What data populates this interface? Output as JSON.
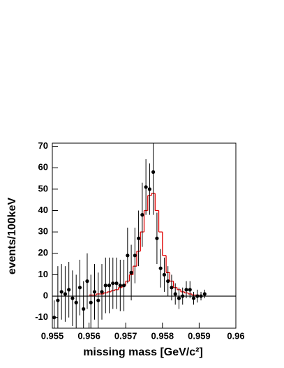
{
  "chart_data": {
    "type": "scatter",
    "xlabel": "missing mass [GeV/c²]",
    "ylabel": "events/100keV",
    "color": "#000000",
    "x": [
      0.95505,
      0.95515,
      0.95525,
      0.95535,
      0.95545,
      0.95555,
      0.95565,
      0.95575,
      0.95585,
      0.95595,
      0.95605,
      0.95615,
      0.95625,
      0.95635,
      0.95645,
      0.95655,
      0.95665,
      0.95675,
      0.95685,
      0.95695,
      0.95705,
      0.95715,
      0.95725,
      0.95735,
      0.95745,
      0.95755,
      0.95765,
      0.95775,
      0.95785,
      0.95795,
      0.95805,
      0.95815,
      0.95825,
      0.95835,
      0.95845,
      0.95855,
      0.95865,
      0.95875,
      0.95885,
      0.95895,
      0.95905,
      0.95915
    ],
    "values": [
      -10,
      -2,
      2,
      1,
      3,
      -1,
      -3,
      4,
      -6,
      7,
      -3,
      2,
      -2,
      2,
      5,
      5,
      6,
      6,
      5,
      5,
      19,
      11,
      19,
      27,
      38,
      51,
      50,
      58,
      27,
      13,
      10,
      7,
      4,
      1,
      -1,
      0,
      3,
      3,
      -1,
      0,
      0,
      1
    ],
    "errors": [
      8,
      16,
      13,
      13,
      13,
      13,
      13,
      13,
      13,
      13,
      13,
      13,
      13,
      13,
      13,
      13,
      12,
      12,
      12,
      12,
      13,
      13,
      13,
      13,
      15,
      13,
      12,
      20,
      12,
      9,
      8,
      7,
      6,
      5,
      5,
      4,
      4,
      4,
      3,
      3,
      2,
      2
    ],
    "fit": {
      "color": "#e00000",
      "bins": [
        0.956,
        0.9561,
        0.9562,
        0.9563,
        0.9564,
        0.9565,
        0.9566,
        0.9567,
        0.9568,
        0.9569,
        0.957,
        0.9571,
        0.9572,
        0.9573,
        0.9574,
        0.9575,
        0.9576,
        0.9577,
        0.9578,
        0.9579,
        0.958,
        0.9581,
        0.9582,
        0.9583,
        0.9584,
        0.9585,
        0.9586,
        0.9587,
        0.9588,
        0.9589,
        0.959
      ],
      "values": [
        0.5,
        0.5,
        1,
        1,
        1.5,
        2,
        2.5,
        3,
        4,
        5,
        7,
        10,
        14,
        21,
        30,
        40,
        47,
        48,
        40,
        30,
        19,
        11,
        7,
        4,
        3,
        2,
        1.5,
        1,
        0.5,
        0.5
      ]
    },
    "xlim": [
      0.955,
      0.96
    ],
    "xticks": [
      0.955,
      0.956,
      0.957,
      0.958,
      0.959,
      0.96
    ],
    "ylim": [
      -15,
      71.5
    ],
    "yticks": [
      -10,
      0,
      10,
      20,
      30,
      40,
      50,
      60,
      70
    ],
    "zero_line": true
  }
}
